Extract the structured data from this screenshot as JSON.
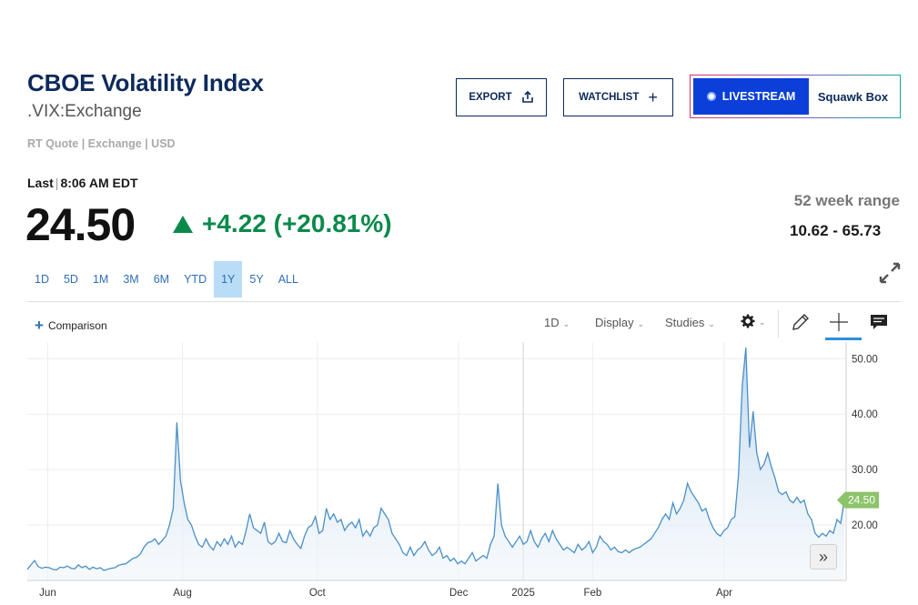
{
  "header": {
    "title": "CBOE Volatility Index",
    "symbol": ".VIX:Exchange",
    "meta": "RT Quote | Exchange | USD"
  },
  "actions": {
    "export_label": "EXPORT",
    "watchlist_label": "WATCHLIST",
    "livestream_label": "LIVESTREAM",
    "squawk_label": "Squawk Box"
  },
  "quote": {
    "last_label": "Last",
    "time": "8:06 AM EDT",
    "price": "24.50",
    "change": "+4.22 (+20.81%)",
    "range_label": "52 week range",
    "range_value": "10.62 - 65.73"
  },
  "periods": [
    "1D",
    "5D",
    "1M",
    "3M",
    "6M",
    "YTD",
    "1Y",
    "5Y",
    "ALL"
  ],
  "active_period": "1Y",
  "chart_toolbar": {
    "comparison_label": "Comparison",
    "interval_label": "1D",
    "display_label": "Display",
    "studies_label": "Studies"
  },
  "colors": {
    "accent": "#2f6fb8",
    "up": "#0a8a4a",
    "line": "#4a90c8",
    "price_tag": "#8cc36b"
  },
  "chart_data": {
    "type": "area",
    "ylim": [
      10,
      53
    ],
    "yticks": [
      "50.00",
      "40.00",
      "30.00",
      "20.00"
    ],
    "ytick_values": [
      50,
      40,
      30,
      20
    ],
    "xticks": [
      "Jun",
      "Aug",
      "Oct",
      "Dec",
      "2025",
      "Feb",
      "Apr"
    ],
    "last_value_label": "24.50",
    "last_value": 24.5,
    "series": [
      {
        "values": [
          12.0,
          12.8,
          13.6,
          12.5,
          12.2,
          12.4,
          12.3,
          12.0,
          11.9,
          12.4,
          12.3,
          12.6,
          12.2,
          12.1,
          12.8,
          12.3,
          12.6,
          12.0,
          12.4,
          12.1,
          12.3,
          11.8,
          12.0,
          12.2,
          12.3,
          12.7,
          12.9,
          13.0,
          13.5,
          14.0,
          14.2,
          14.8,
          16.0,
          16.8,
          17.0,
          17.5,
          16.5,
          17.2,
          18.0,
          20.0,
          23.0,
          38.5,
          28.0,
          24.0,
          21.0,
          20.0,
          18.0,
          16.5,
          16.0,
          17.5,
          16.2,
          15.5,
          17.0,
          16.2,
          17.5,
          16.5,
          18.0,
          16.0,
          17.0,
          16.5,
          19.0,
          22.0,
          19.5,
          19.0,
          18.5,
          20.5,
          17.0,
          16.5,
          17.0,
          18.5,
          17.0,
          16.8,
          19.0,
          17.5,
          16.5,
          15.8,
          18.0,
          19.5,
          20.0,
          21.5,
          18.5,
          19.0,
          23.0,
          21.0,
          22.0,
          20.5,
          21.0,
          19.0,
          20.0,
          20.5,
          19.5,
          21.0,
          18.0,
          19.0,
          18.0,
          19.5,
          20.0,
          23.0,
          22.0,
          21.0,
          18.5,
          17.5,
          16.5,
          15.0,
          14.5,
          16.0,
          14.5,
          15.5,
          16.0,
          17.0,
          15.5,
          14.5,
          15.0,
          16.0,
          14.0,
          14.5,
          13.5,
          14.0,
          13.0,
          13.5,
          13.0,
          14.0,
          15.0,
          13.5,
          14.0,
          14.5,
          14.0,
          16.5,
          18.0,
          27.5,
          20.0,
          18.0,
          17.0,
          16.0,
          17.0,
          18.0,
          16.5,
          17.0,
          19.0,
          17.0,
          16.0,
          17.5,
          18.5,
          17.0,
          19.0,
          17.5,
          16.5,
          15.5,
          16.0,
          15.5,
          15.0,
          16.5,
          15.5,
          16.0,
          17.0,
          15.0,
          16.0,
          18.0,
          17.0,
          16.5,
          15.5,
          16.0,
          15.2,
          15.0,
          15.5,
          15.0,
          15.5,
          15.8,
          16.0,
          16.5,
          17.0,
          17.5,
          18.5,
          19.5,
          21.0,
          22.0,
          21.0,
          24.0,
          22.0,
          23.0,
          24.5,
          27.5,
          26.0,
          25.0,
          24.0,
          22.5,
          23.0,
          21.0,
          19.5,
          18.5,
          18.0,
          19.0,
          19.5,
          21.0,
          21.5,
          29.0,
          45.0,
          52.0,
          34.0,
          40.5,
          33.0,
          30.0,
          31.0,
          33.0,
          30.5,
          28.5,
          26.0,
          25.5,
          26.0,
          24.5,
          24.0,
          25.0,
          24.0,
          24.5,
          22.0,
          21.0,
          18.5,
          17.8,
          18.5,
          18.0,
          19.0,
          18.5,
          21.0,
          20.3,
          24.5
        ]
      }
    ]
  }
}
